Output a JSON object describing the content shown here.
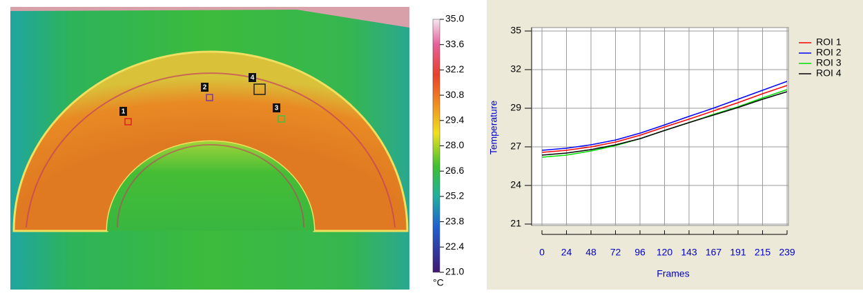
{
  "thermal_image": {
    "colorbar": {
      "lim": [
        21,
        35
      ],
      "unit": "°C",
      "ticks": [
        {
          "value": 35,
          "label": "35.0"
        },
        33.6,
        32.2,
        30.8,
        29.4,
        {
          "value": 28,
          "label": "28.0"
        },
        26.6,
        25.2,
        23.8,
        22.4,
        {
          "value": 21,
          "label": "21.0"
        }
      ]
    },
    "rois": [
      {
        "label": "1",
        "color": "#e02020"
      },
      {
        "label": "2",
        "color": "#7a3a9a"
      },
      {
        "label": "3",
        "color": "#40c040"
      },
      {
        "label": "4",
        "color": "#202020"
      }
    ]
  },
  "chart_data": {
    "type": "line",
    "x_label": "Frames",
    "y_label": "Temperature",
    "x": [
      0,
      24,
      48,
      72,
      96,
      120,
      143,
      167,
      191,
      215,
      239
    ],
    "series": [
      {
        "name": "ROI 1",
        "color": "#ff0000",
        "values": [
          26.2,
          26.35,
          26.6,
          26.95,
          27.45,
          28.05,
          28.6,
          29.2,
          29.8,
          30.45,
          31.05
        ]
      },
      {
        "name": "ROI 2",
        "color": "#0000ff",
        "values": [
          26.35,
          26.5,
          26.75,
          27.1,
          27.6,
          28.2,
          28.8,
          29.4,
          30.05,
          30.7,
          31.35
        ]
      },
      {
        "name": "ROI 3",
        "color": "#00e000",
        "values": [
          25.85,
          26.0,
          26.3,
          26.7,
          27.2,
          27.8,
          28.35,
          28.95,
          29.5,
          30.15,
          30.75
        ]
      },
      {
        "name": "ROI 4",
        "color": "#000000",
        "values": [
          26.0,
          26.15,
          26.4,
          26.75,
          27.2,
          27.8,
          28.35,
          28.9,
          29.45,
          30.05,
          30.6
        ]
      }
    ],
    "xlim": [
      0,
      239
    ],
    "ylim": [
      21,
      35
    ],
    "xticks": [
      0,
      {
        "value": 23.9,
        "label": "24"
      },
      {
        "value": 47.8,
        "label": "48"
      },
      {
        "value": 71.7,
        "label": "72"
      },
      {
        "value": 95.6,
        "label": "96"
      },
      {
        "value": 119.5,
        "label": "120"
      },
      {
        "value": 143.4,
        "label": "143"
      },
      {
        "value": 167.3,
        "label": "167"
      },
      {
        "value": 191.2,
        "label": "191"
      },
      {
        "value": 215.1,
        "label": "215"
      },
      239
    ],
    "yticks": [
      21,
      {
        "value": 23.8,
        "label": "24"
      },
      {
        "value": 26.6,
        "label": "27"
      },
      {
        "value": 29.4,
        "label": "29"
      },
      {
        "value": 32.2,
        "label": "32"
      },
      35
    ],
    "grid": true,
    "legend": "right"
  }
}
